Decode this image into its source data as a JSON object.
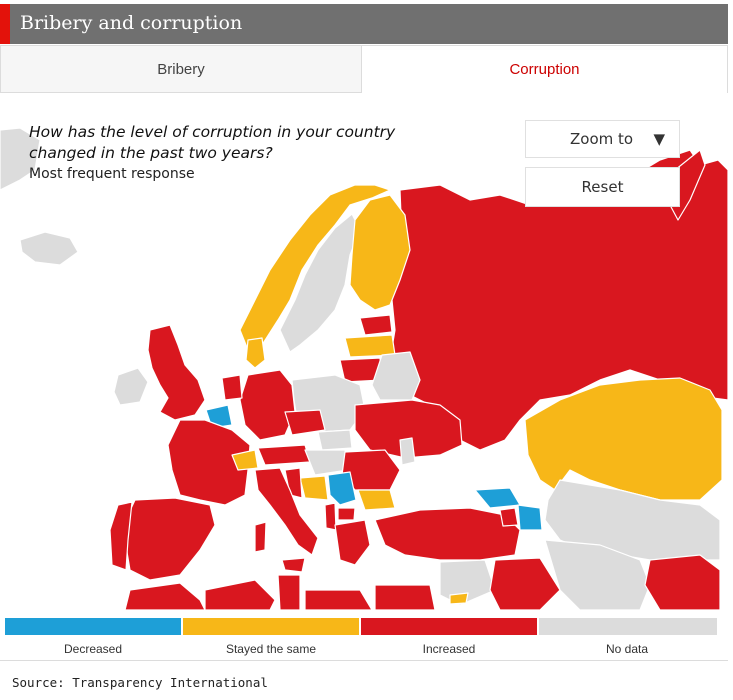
{
  "header": {
    "title": "Bribery and corruption"
  },
  "tabs": [
    {
      "label": "Bribery",
      "active": false
    },
    {
      "label": "Corruption",
      "active": true
    }
  ],
  "map": {
    "question": "How has the level of corruption in your country changed in the past two years?",
    "subtitle": "Most frequent response",
    "zoom_label": "Zoom to",
    "reset_label": "Reset"
  },
  "legend": [
    {
      "label": "Decreased",
      "color": "#1e9fd7"
    },
    {
      "label": "Stayed the same",
      "color": "#f7b718"
    },
    {
      "label": "Increased",
      "color": "#d9171f"
    },
    {
      "label": "No data",
      "color": "#dcdcdc"
    }
  ],
  "source": "Source: Transparency International",
  "colors": {
    "ocean": "#ffffff",
    "header": "#707070",
    "accent": "#e3120b",
    "border": "#ffffff"
  }
}
